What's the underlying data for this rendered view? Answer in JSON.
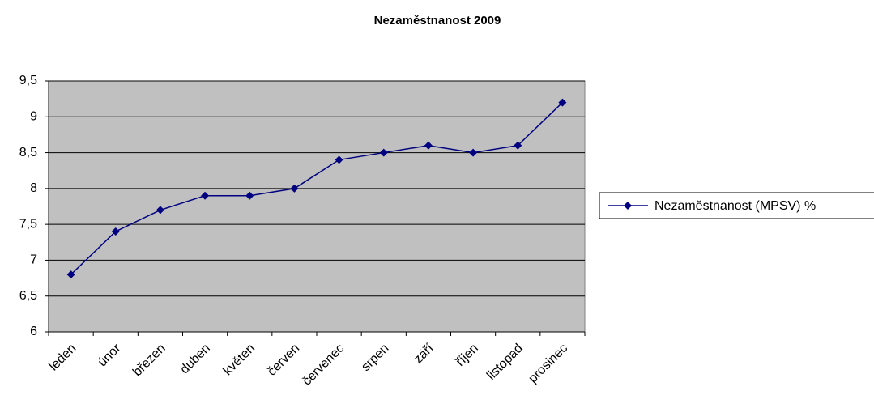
{
  "chart_data": {
    "type": "line",
    "title": "Nezaměstnanost 2009",
    "categories": [
      "leden",
      "únor",
      "březen",
      "duben",
      "květen",
      "červen",
      "červenec",
      "srpen",
      "září",
      "říjen",
      "listopad",
      "prosinec"
    ],
    "series": [
      {
        "name": "Nezaměstnanost (MPSV) %",
        "color": "#000080",
        "values": [
          6.8,
          7.4,
          7.7,
          7.9,
          7.9,
          8.0,
          8.4,
          8.5,
          8.6,
          8.5,
          8.6,
          9.2
        ]
      }
    ],
    "ylim": [
      6,
      9.5
    ],
    "yticks": [
      6,
      {
        "value": 6.5,
        "label": "6,5"
      },
      7,
      {
        "value": 7.5,
        "label": "7,5"
      },
      8,
      {
        "value": 8.5,
        "label": "8,5"
      },
      9,
      {
        "value": 9.5,
        "label": "9,5"
      }
    ],
    "grid": true,
    "legend": "right",
    "plot_background": "#c0c0c0"
  }
}
